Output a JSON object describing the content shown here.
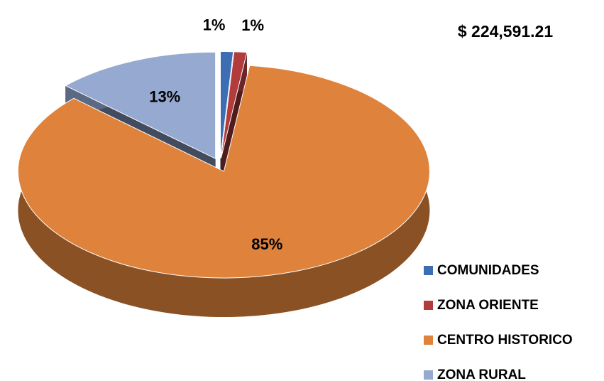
{
  "chart_data": {
    "type": "pie",
    "annotation": "$ 224,591.21",
    "categories": [
      "COMUNIDADES",
      "ZONA ORIENTE",
      "CENTRO HISTORICO",
      "ZONA RURAL"
    ],
    "values": [
      1,
      1,
      85,
      13
    ],
    "value_labels": [
      "1%",
      "1%",
      "85%",
      "13%"
    ],
    "colors": [
      "#3d6db3",
      "#b23b3b",
      "#de823c",
      "#95a9d1"
    ],
    "legend": "bottom-right"
  }
}
